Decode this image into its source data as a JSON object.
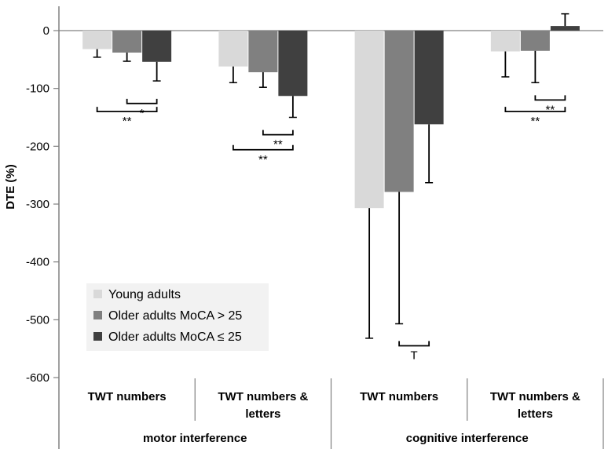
{
  "chart_data": {
    "type": "bar",
    "title": "",
    "ylabel": "DTE  (%)",
    "xlabel": "",
    "ylim": [
      -600,
      0
    ],
    "yticks": [
      0,
      -100,
      -200,
      -300,
      -400,
      -500,
      -600
    ],
    "categories": [
      "TWT numbers",
      "TWT numbers & letters",
      "TWT numbers",
      "TWT numbers & letters"
    ],
    "category_lines": [
      [
        "TWT numbers"
      ],
      [
        "TWT numbers &",
        "letters"
      ],
      [
        "TWT numbers"
      ],
      [
        "TWT numbers &",
        "letters"
      ]
    ],
    "groups": [
      {
        "label": "motor interference",
        "categories": [
          0,
          1
        ]
      },
      {
        "label": "cognitive interference",
        "categories": [
          2,
          3
        ]
      }
    ],
    "series": [
      {
        "name": "Young adults",
        "color": "#d9d9d9",
        "values": [
          -32,
          -62,
          -307,
          -36
        ],
        "error": [
          14,
          28,
          225,
          44
        ]
      },
      {
        "name": "Older adults  MoCA > 25",
        "color": "#808080",
        "values": [
          -38,
          -72,
          -279,
          -35
        ],
        "error": [
          15,
          26,
          228,
          55
        ]
      },
      {
        "name": "Older adults  MoCA ≤ 25",
        "color": "#404040",
        "values": [
          -54,
          -113,
          -162,
          8
        ],
        "error": [
          33,
          37,
          101,
          21
        ]
      }
    ],
    "significance": [
      {
        "category": 0,
        "from_series": 1,
        "to_series": 2,
        "y": -126,
        "label": "*"
      },
      {
        "category": 0,
        "from_series": 0,
        "to_series": 2,
        "y": -140,
        "label": "**"
      },
      {
        "category": 1,
        "from_series": 1,
        "to_series": 2,
        "y": -180,
        "label": "**"
      },
      {
        "category": 1,
        "from_series": 0,
        "to_series": 2,
        "y": -206,
        "label": "**"
      },
      {
        "category": 2,
        "from_series": 1,
        "to_series": 2,
        "y": -545,
        "label": "T",
        "below": true
      },
      {
        "category": 3,
        "from_series": 1,
        "to_series": 2,
        "y": -120,
        "label": "**"
      },
      {
        "category": 3,
        "from_series": 0,
        "to_series": 2,
        "y": -140,
        "label": "**"
      }
    ],
    "legend": {
      "position": "lower-left"
    }
  }
}
